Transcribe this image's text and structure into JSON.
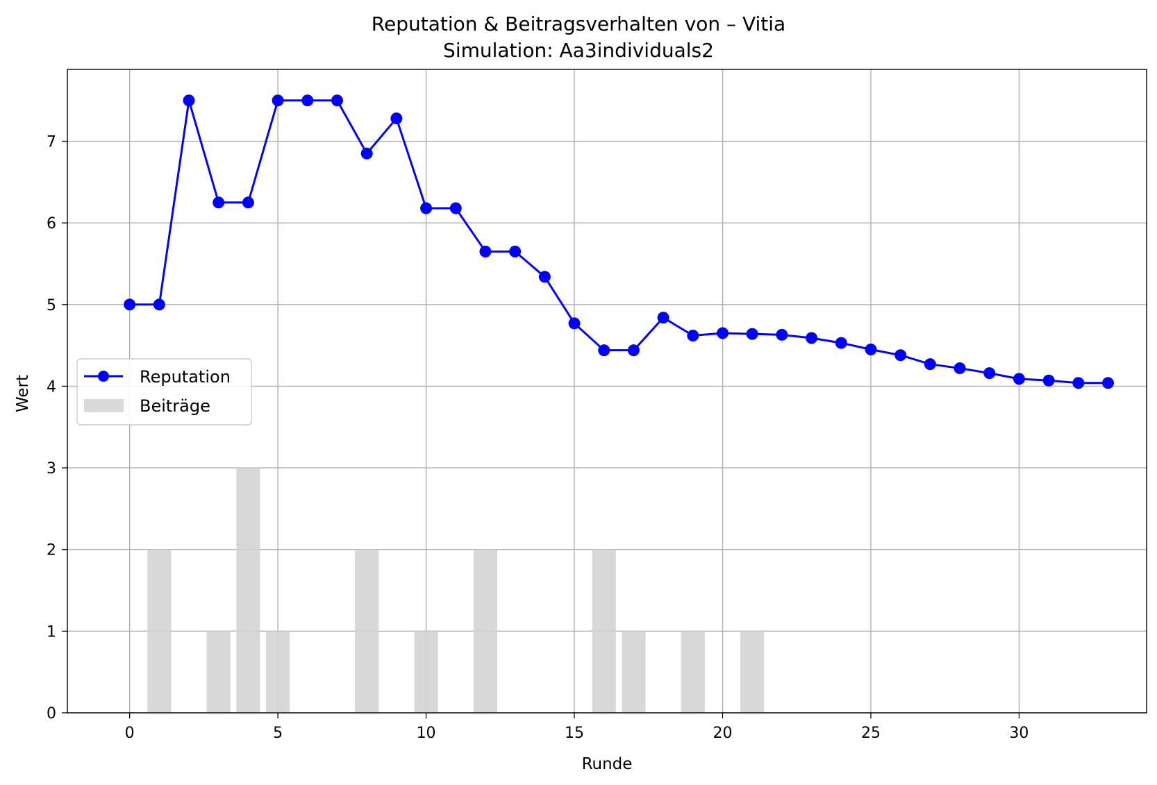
{
  "chart_data": {
    "type": "line+bar",
    "title": "Reputation & Beitragsverhalten von – Vitia",
    "subtitle": "Simulation: Aa3individuals2",
    "xlabel": "Runde",
    "ylabel": "Wert",
    "xlim": [
      -2.1,
      34.3
    ],
    "ylim": [
      0,
      7.88
    ],
    "xticks": [
      0,
      5,
      10,
      15,
      20,
      25,
      30
    ],
    "yticks": [
      0,
      1,
      2,
      3,
      4,
      5,
      6,
      7
    ],
    "grid": true,
    "legend_position": "center-left",
    "series": [
      {
        "name": "Reputation",
        "kind": "line",
        "marker": "circle",
        "color": "#0000ff",
        "x": [
          0,
          1,
          2,
          3,
          4,
          5,
          6,
          7,
          8,
          9,
          10,
          11,
          12,
          13,
          14,
          15,
          16,
          17,
          18,
          19,
          20,
          21,
          22,
          23,
          24,
          25,
          26,
          27,
          28,
          29,
          30,
          31,
          32,
          33
        ],
        "values": [
          5.0,
          5.0,
          7.5,
          6.25,
          6.25,
          7.5,
          7.5,
          7.5,
          6.85,
          7.28,
          6.18,
          6.18,
          5.65,
          5.65,
          5.34,
          4.77,
          4.44,
          4.44,
          4.84,
          4.62,
          4.65,
          4.64,
          4.63,
          4.59,
          4.53,
          4.45,
          4.38,
          4.27,
          4.22,
          4.16,
          4.09,
          4.07,
          4.04,
          4.04
        ]
      },
      {
        "name": "Beiträge",
        "kind": "bar",
        "color": "#d3d3d3",
        "x": [
          1,
          3,
          4,
          5,
          8,
          10,
          12,
          16,
          17,
          19,
          21
        ],
        "values": [
          2,
          1,
          3,
          1,
          2,
          1,
          2,
          2,
          1,
          1,
          1
        ]
      }
    ]
  }
}
